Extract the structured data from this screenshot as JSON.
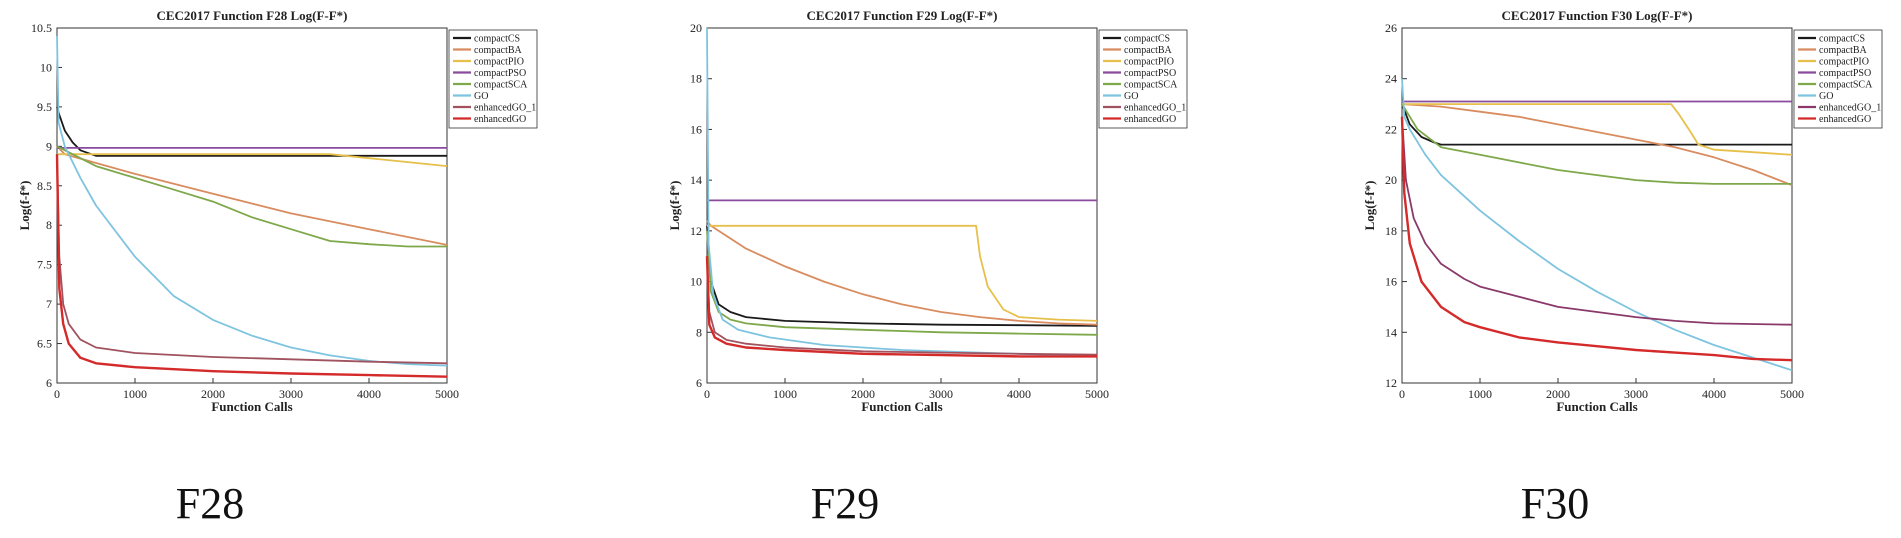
{
  "captions": [
    "F28",
    "F29",
    "F30"
  ],
  "chart_data": [
    {
      "type": "line",
      "title": "CEC2017 Function F28 Log(F-F*)",
      "xlabel": "Function Calls",
      "ylabel": "Log(f-f*)",
      "xlim": [
        0,
        5000
      ],
      "ylim": [
        6,
        10.5
      ],
      "xticks": [
        0,
        1000,
        2000,
        3000,
        4000,
        5000
      ],
      "yticks": [
        6,
        6.5,
        7,
        7.5,
        8,
        8.5,
        9,
        9.5,
        10,
        10.5
      ],
      "legend_position": "right",
      "series": [
        {
          "name": "compactCS",
          "color": "#1a1a1a",
          "x": [
            0,
            30,
            100,
            200,
            300,
            500,
            1000,
            2000,
            5000
          ],
          "y": [
            9.5,
            9.4,
            9.2,
            9.05,
            8.95,
            8.88,
            8.88,
            8.88,
            8.88
          ]
        },
        {
          "name": "compactBA",
          "color": "#d98c5f",
          "x": [
            0,
            100,
            1000,
            2000,
            3000,
            4000,
            5000
          ],
          "y": [
            9.0,
            8.9,
            8.65,
            8.4,
            8.15,
            7.95,
            7.75
          ]
        },
        {
          "name": "compactPIO",
          "color": "#e6c04a",
          "x": [
            0,
            100,
            1000,
            2000,
            3000,
            3500,
            4000,
            4500,
            5000
          ],
          "y": [
            8.9,
            8.9,
            8.9,
            8.9,
            8.9,
            8.9,
            8.85,
            8.8,
            8.75
          ]
        },
        {
          "name": "compactPSO",
          "color": "#8a4a9e",
          "x": [
            0,
            5000
          ],
          "y": [
            8.98,
            8.98
          ]
        },
        {
          "name": "compactSCA",
          "color": "#7ea84a",
          "x": [
            0,
            200,
            500,
            1000,
            1500,
            2000,
            2500,
            3000,
            3500,
            4000,
            4500,
            5000
          ],
          "y": [
            9.0,
            8.9,
            8.75,
            8.6,
            8.45,
            8.3,
            8.1,
            7.95,
            7.8,
            7.76,
            7.73,
            7.73
          ]
        },
        {
          "name": "GO",
          "color": "#7ec4e0",
          "x": [
            0,
            20,
            100,
            300,
            500,
            1000,
            1500,
            2000,
            2500,
            3000,
            3500,
            4000,
            4500,
            5000
          ],
          "y": [
            10.4,
            9.3,
            9.0,
            8.6,
            8.25,
            7.6,
            7.1,
            6.8,
            6.6,
            6.45,
            6.35,
            6.28,
            6.24,
            6.22
          ]
        },
        {
          "name": "enhancedGO_1",
          "color": "#a0525e",
          "x": [
            0,
            30,
            80,
            150,
            300,
            500,
            1000,
            2000,
            3000,
            4000,
            5000
          ],
          "y": [
            8.9,
            7.6,
            7.0,
            6.75,
            6.55,
            6.45,
            6.38,
            6.33,
            6.3,
            6.27,
            6.25
          ]
        },
        {
          "name": "enhancedGO",
          "color": "#d42a2a",
          "x": [
            0,
            30,
            80,
            150,
            300,
            500,
            1000,
            2000,
            3000,
            4000,
            5000
          ],
          "y": [
            8.9,
            7.2,
            6.75,
            6.5,
            6.32,
            6.25,
            6.2,
            6.15,
            6.12,
            6.1,
            6.08
          ]
        }
      ]
    },
    {
      "type": "line",
      "title": "CEC2017 Function F29 Log(F-F*)",
      "xlabel": "Function Calls",
      "ylabel": "Log(f-f*)",
      "xlim": [
        0,
        5000
      ],
      "ylim": [
        6,
        20
      ],
      "xticks": [
        0,
        1000,
        2000,
        3000,
        4000,
        5000
      ],
      "yticks": [
        6,
        8,
        10,
        12,
        14,
        16,
        18,
        20
      ],
      "legend_position": "right",
      "series": [
        {
          "name": "compactCS",
          "color": "#1a1a1a",
          "x": [
            0,
            50,
            150,
            300,
            500,
            1000,
            2000,
            3000,
            4000,
            5000
          ],
          "y": [
            12.2,
            10.0,
            9.1,
            8.8,
            8.6,
            8.45,
            8.35,
            8.3,
            8.28,
            8.25
          ]
        },
        {
          "name": "compactBA",
          "color": "#d98c5f",
          "x": [
            0,
            50,
            500,
            1000,
            1500,
            2000,
            2500,
            3000,
            3500,
            4000,
            4500,
            5000
          ],
          "y": [
            12.4,
            12.2,
            11.3,
            10.6,
            10.0,
            9.5,
            9.1,
            8.8,
            8.6,
            8.45,
            8.35,
            8.3
          ]
        },
        {
          "name": "compactPIO",
          "color": "#e6c04a",
          "x": [
            0,
            20,
            100,
            3450,
            3500,
            3600,
            3800,
            4000,
            4500,
            5000
          ],
          "y": [
            12.2,
            12.2,
            12.2,
            12.2,
            11.0,
            9.8,
            8.9,
            8.6,
            8.5,
            8.45
          ]
        },
        {
          "name": "compactPSO",
          "color": "#8a4a9e",
          "x": [
            0,
            5000
          ],
          "y": [
            13.2,
            13.2
          ]
        },
        {
          "name": "compactSCA",
          "color": "#7ea84a",
          "x": [
            0,
            50,
            150,
            300,
            500,
            1000,
            2000,
            3000,
            4000,
            5000
          ],
          "y": [
            12.0,
            9.6,
            8.8,
            8.5,
            8.35,
            8.2,
            8.1,
            8.0,
            7.95,
            7.9
          ]
        },
        {
          "name": "GO",
          "color": "#7ec4e0",
          "x": [
            0,
            20,
            80,
            200,
            400,
            800,
            1500,
            2500,
            3500,
            4500,
            5000
          ],
          "y": [
            20.0,
            11.5,
            9.5,
            8.5,
            8.1,
            7.8,
            7.5,
            7.3,
            7.2,
            7.1,
            7.05
          ]
        },
        {
          "name": "enhancedGO_1",
          "color": "#a0525e",
          "x": [
            0,
            30,
            100,
            250,
            500,
            1000,
            2000,
            3000,
            4000,
            5000
          ],
          "y": [
            11.0,
            8.8,
            8.0,
            7.7,
            7.55,
            7.4,
            7.25,
            7.2,
            7.15,
            7.12
          ]
        },
        {
          "name": "enhancedGO",
          "color": "#d42a2a",
          "x": [
            0,
            30,
            100,
            250,
            500,
            1000,
            2000,
            3000,
            4000,
            5000
          ],
          "y": [
            11.0,
            8.3,
            7.8,
            7.55,
            7.4,
            7.3,
            7.15,
            7.1,
            7.05,
            7.05
          ]
        }
      ]
    },
    {
      "type": "line",
      "title": "CEC2017 Function F30 Log(F-F*)",
      "xlabel": "Function Calls",
      "ylabel": "Log(f-f*)",
      "xlim": [
        0,
        5000
      ],
      "ylim": [
        12,
        26
      ],
      "xticks": [
        0,
        1000,
        2000,
        3000,
        4000,
        5000
      ],
      "yticks": [
        12,
        14,
        16,
        18,
        20,
        22,
        24,
        26
      ],
      "legend_position": "right",
      "series": [
        {
          "name": "compactCS",
          "color": "#1a1a1a",
          "x": [
            0,
            100,
            250,
            400,
            500,
            1000,
            2000,
            3000,
            4000,
            5000
          ],
          "y": [
            23.0,
            22.2,
            21.7,
            21.5,
            21.4,
            21.4,
            21.4,
            21.4,
            21.4,
            21.4
          ]
        },
        {
          "name": "compactBA",
          "color": "#d98c5f",
          "x": [
            0,
            500,
            1000,
            1500,
            2000,
            2500,
            3000,
            3500,
            4000,
            4500,
            5000
          ],
          "y": [
            23.0,
            22.9,
            22.7,
            22.5,
            22.2,
            21.9,
            21.6,
            21.3,
            20.9,
            20.4,
            19.8
          ]
        },
        {
          "name": "compactPIO",
          "color": "#e6c04a",
          "x": [
            0,
            3450,
            3550,
            3700,
            3800,
            4000,
            4500,
            5000
          ],
          "y": [
            23.0,
            23.0,
            22.6,
            21.9,
            21.4,
            21.2,
            21.1,
            21.0
          ]
        },
        {
          "name": "compactPSO",
          "color": "#8a4a9e",
          "x": [
            0,
            5000
          ],
          "y": [
            23.1,
            23.1
          ]
        },
        {
          "name": "compactSCA",
          "color": "#7ea84a",
          "x": [
            0,
            200,
            500,
            1000,
            1500,
            2000,
            2500,
            3000,
            3500,
            4000,
            5000
          ],
          "y": [
            23.0,
            22.0,
            21.3,
            21.0,
            20.7,
            20.4,
            20.2,
            20.0,
            19.9,
            19.85,
            19.85
          ]
        },
        {
          "name": "GO",
          "color": "#7ec4e0",
          "x": [
            0,
            30,
            100,
            300,
            500,
            1000,
            1500,
            2000,
            2500,
            3000,
            3500,
            4000,
            4500,
            5000
          ],
          "y": [
            24.0,
            22.5,
            22.0,
            21.0,
            20.2,
            18.8,
            17.6,
            16.5,
            15.6,
            14.8,
            14.1,
            13.5,
            13.0,
            12.5
          ]
        },
        {
          "name": "enhancedGO_1",
          "color": "#8a3a6a",
          "x": [
            0,
            50,
            150,
            300,
            500,
            800,
            1000,
            1500,
            2000,
            2500,
            3000,
            3500,
            4000,
            5000
          ],
          "y": [
            22.5,
            20.0,
            18.5,
            17.5,
            16.7,
            16.1,
            15.8,
            15.4,
            15.0,
            14.8,
            14.6,
            14.45,
            14.35,
            14.3
          ]
        },
        {
          "name": "enhancedGO",
          "color": "#d42a2a",
          "x": [
            0,
            30,
            100,
            250,
            500,
            800,
            1000,
            1500,
            2000,
            2500,
            3000,
            3500,
            4000,
            4500,
            5000
          ],
          "y": [
            22.5,
            19.5,
            17.5,
            16.0,
            15.0,
            14.4,
            14.2,
            13.8,
            13.6,
            13.45,
            13.3,
            13.2,
            13.1,
            12.95,
            12.9
          ]
        }
      ]
    }
  ]
}
